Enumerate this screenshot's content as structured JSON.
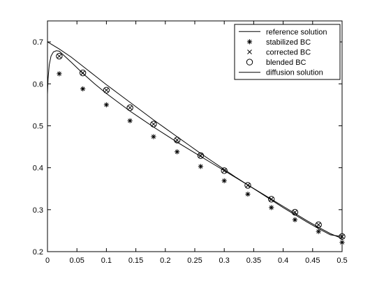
{
  "chart_data": {
    "type": "line",
    "title": "",
    "xlabel": "",
    "ylabel": "",
    "xlim": [
      0,
      0.5
    ],
    "ylim": [
      0.2,
      0.75
    ],
    "xticks": [
      0,
      0.05,
      0.1,
      0.15,
      0.2,
      0.25,
      0.3,
      0.35,
      0.4,
      0.45,
      0.5
    ],
    "xtick_labels": [
      "0",
      "0.05",
      "0.1",
      "0.15",
      "0.2",
      "0.25",
      "0.3",
      "0.35",
      "0.4",
      "0.45",
      "0.5"
    ],
    "yticks": [
      0.2,
      0.3,
      0.4,
      0.5,
      0.6,
      0.7
    ],
    "ytick_labels": [
      "0.2",
      "0.3",
      "0.4",
      "0.5",
      "0.6",
      "0.7"
    ],
    "grid": false,
    "legend_position": "top-right",
    "series": [
      {
        "name": "reference solution",
        "style": "line",
        "x": [
          0,
          0.001,
          0.003,
          0.006,
          0.01,
          0.015,
          0.02,
          0.04,
          0.06,
          0.08,
          0.1,
          0.12,
          0.14,
          0.16,
          0.18,
          0.2,
          0.22,
          0.24,
          0.26,
          0.28,
          0.3,
          0.32,
          0.34,
          0.36,
          0.38,
          0.4,
          0.42,
          0.44,
          0.46,
          0.48,
          0.5
        ],
        "y": [
          0.575,
          0.612,
          0.645,
          0.666,
          0.676,
          0.679,
          0.678,
          0.652,
          0.625,
          0.6,
          0.577,
          0.556,
          0.535,
          0.516,
          0.497,
          0.479,
          0.461,
          0.444,
          0.427,
          0.41,
          0.393,
          0.376,
          0.359,
          0.342,
          0.325,
          0.308,
          0.291,
          0.274,
          0.258,
          0.243,
          0.231
        ]
      },
      {
        "name": "stabilized BC",
        "style": "asterisk",
        "x": [
          0.02,
          0.06,
          0.1,
          0.14,
          0.18,
          0.22,
          0.26,
          0.3,
          0.34,
          0.38,
          0.42,
          0.46,
          0.5
        ],
        "y": [
          0.624,
          0.588,
          0.55,
          0.512,
          0.474,
          0.438,
          0.403,
          0.369,
          0.337,
          0.305,
          0.276,
          0.248,
          0.222
        ]
      },
      {
        "name": "corrected BC",
        "style": "cross",
        "x": [
          0.02,
          0.06,
          0.1,
          0.14,
          0.18,
          0.22,
          0.26,
          0.3,
          0.34,
          0.38,
          0.42,
          0.46,
          0.5
        ],
        "y": [
          0.666,
          0.626,
          0.585,
          0.543,
          0.504,
          0.466,
          0.429,
          0.393,
          0.358,
          0.325,
          0.294,
          0.264,
          0.236
        ]
      },
      {
        "name": "blended BC",
        "style": "circle",
        "x": [
          0.02,
          0.06,
          0.1,
          0.14,
          0.18,
          0.22,
          0.26,
          0.3,
          0.34,
          0.38,
          0.42,
          0.46,
          0.5
        ],
        "y": [
          0.666,
          0.626,
          0.585,
          0.543,
          0.504,
          0.466,
          0.429,
          0.393,
          0.358,
          0.325,
          0.294,
          0.264,
          0.236
        ]
      },
      {
        "name": "diffusion solution",
        "style": "line",
        "x": [
          0,
          0.02,
          0.04,
          0.06,
          0.08,
          0.1,
          0.12,
          0.14,
          0.16,
          0.18,
          0.2,
          0.22,
          0.24,
          0.26,
          0.28,
          0.3,
          0.32,
          0.34,
          0.36,
          0.38,
          0.4,
          0.42,
          0.44,
          0.46,
          0.48,
          0.5
        ],
        "y": [
          0.7,
          0.683,
          0.664,
          0.642,
          0.62,
          0.598,
          0.577,
          0.556,
          0.535,
          0.514,
          0.494,
          0.474,
          0.454,
          0.434,
          0.415,
          0.396,
          0.377,
          0.359,
          0.341,
          0.323,
          0.305,
          0.288,
          0.271,
          0.255,
          0.24,
          0.236
        ]
      }
    ]
  }
}
